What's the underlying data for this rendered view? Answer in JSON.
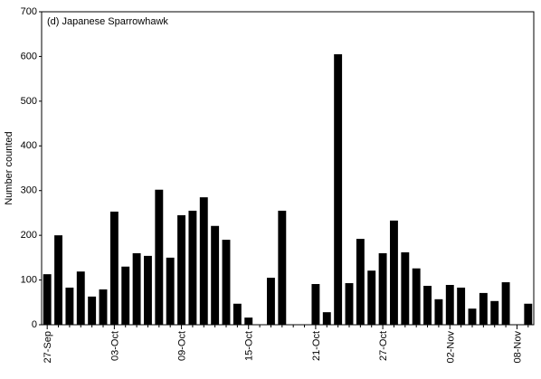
{
  "chart_data": {
    "type": "bar",
    "title": "(d) Japanese Sparrowhawk",
    "y_label": "Number counted",
    "categories": [
      "27-Sep",
      null,
      null,
      null,
      null,
      null,
      "03-Oct",
      null,
      null,
      null,
      null,
      null,
      "09-Oct",
      null,
      null,
      null,
      null,
      null,
      "15-Oct",
      null,
      null,
      null,
      null,
      null,
      "21-Oct",
      null,
      null,
      null,
      null,
      null,
      "27-Oct",
      null,
      null,
      null,
      null,
      null,
      "02-Nov",
      null,
      null,
      null,
      null,
      null,
      "08-Nov",
      null
    ],
    "values": [
      113,
      200,
      83,
      119,
      63,
      79,
      253,
      130,
      160,
      154,
      302,
      150,
      245,
      255,
      285,
      221,
      190,
      47,
      16,
      0,
      105,
      255,
      0,
      0,
      91,
      28,
      605,
      93,
      192,
      121,
      160,
      233,
      162,
      126,
      87,
      57,
      89,
      83,
      36,
      71,
      53,
      95,
      0,
      47
    ],
    "color": "#000000",
    "ylim": [
      0,
      700
    ],
    "yticks": [
      0,
      100,
      200,
      300,
      400,
      500,
      600,
      700
    ],
    "grid": false
  }
}
